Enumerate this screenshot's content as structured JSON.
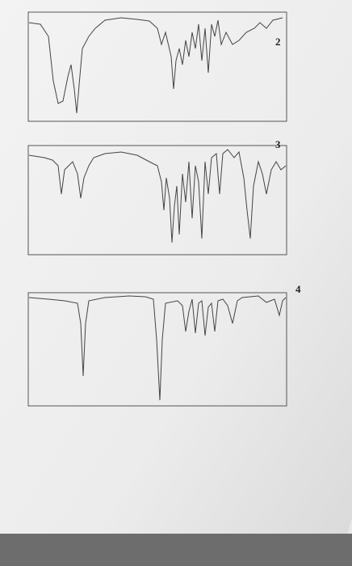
{
  "spectra": [
    {
      "label": "2"
    },
    {
      "label": "3"
    },
    {
      "label": "4"
    }
  ]
}
